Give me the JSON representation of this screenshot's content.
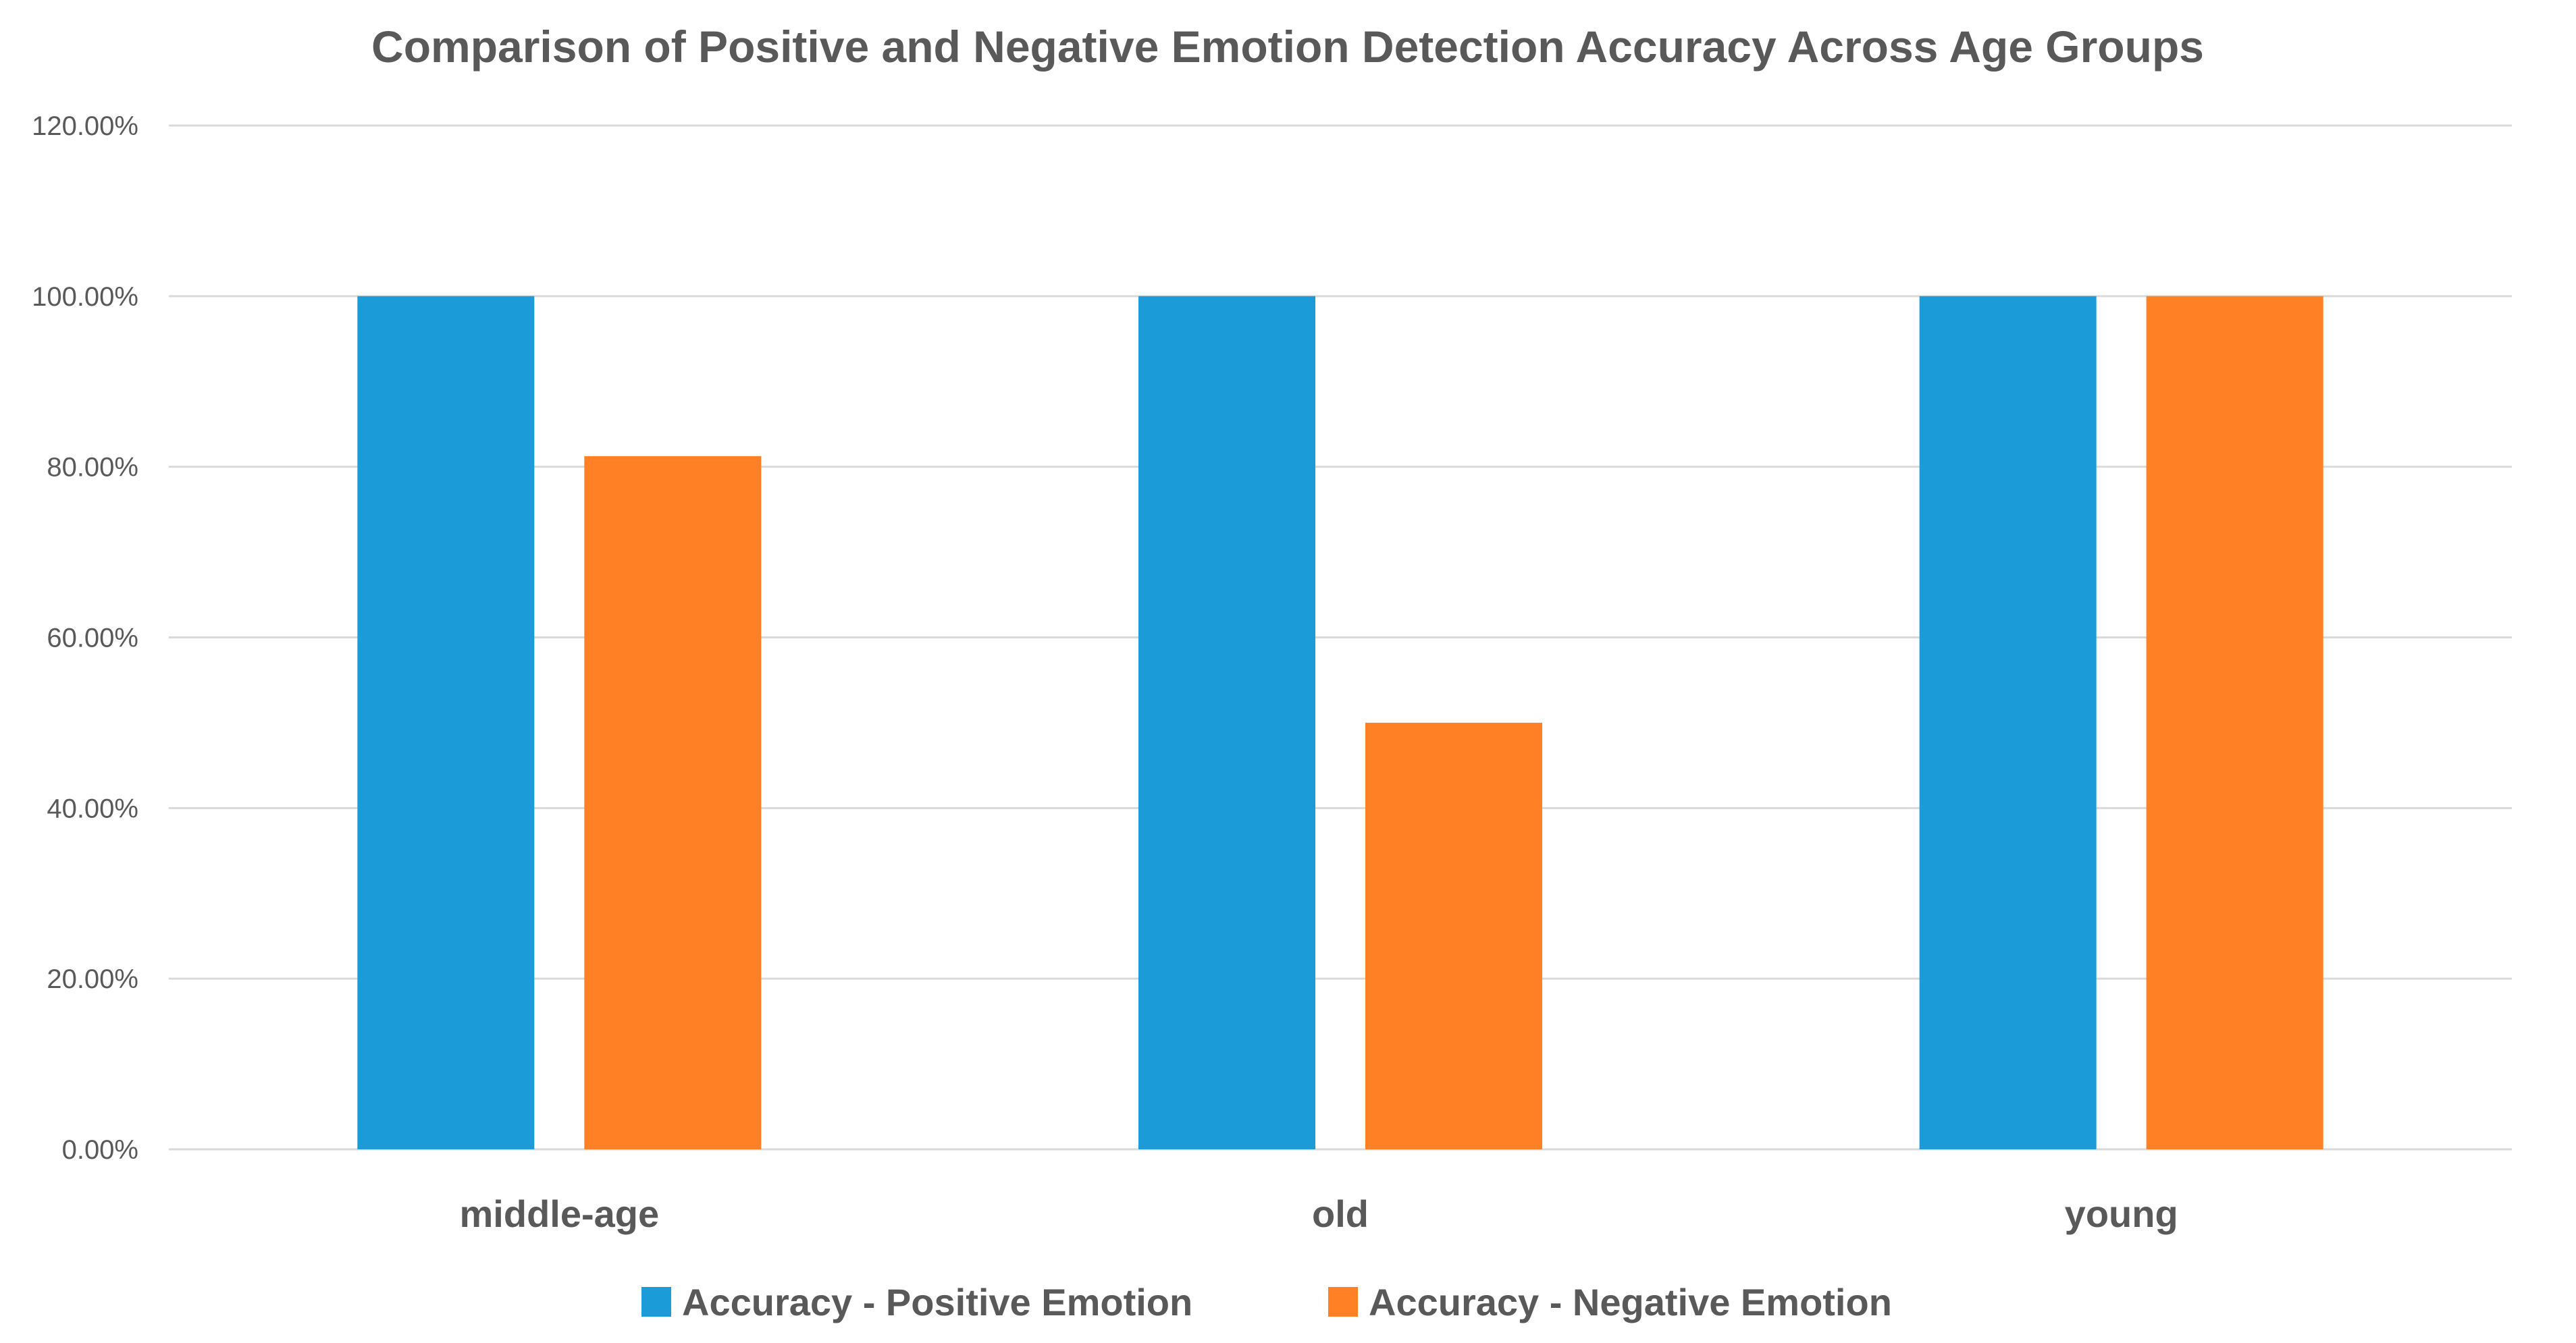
{
  "chart_data": {
    "type": "bar",
    "title": "Comparison of Positive and Negative Emotion Detection Accuracy Across Age Groups",
    "categories": [
      "middle-age",
      "old",
      "young"
    ],
    "series": [
      {
        "name": "Accuracy - Positive Emotion",
        "color": "#1b9cd9",
        "values": [
          100,
          100,
          100
        ]
      },
      {
        "name": "Accuracy - Negative Emotion",
        "color": "#ff8025",
        "values": [
          81.25,
          50,
          100
        ]
      }
    ],
    "y_ticks": [
      "0.00%",
      "20.00%",
      "40.00%",
      "60.00%",
      "80.00%",
      "100.00%",
      "120.00%"
    ],
    "y_tick_values": [
      0,
      20,
      40,
      60,
      80,
      100,
      120
    ],
    "ylim": [
      0,
      120
    ],
    "xlabel": "",
    "ylabel": "",
    "grid": true,
    "legend_position": "bottom",
    "gridline_color": "#d9d9d9",
    "text_color": "#595959"
  }
}
